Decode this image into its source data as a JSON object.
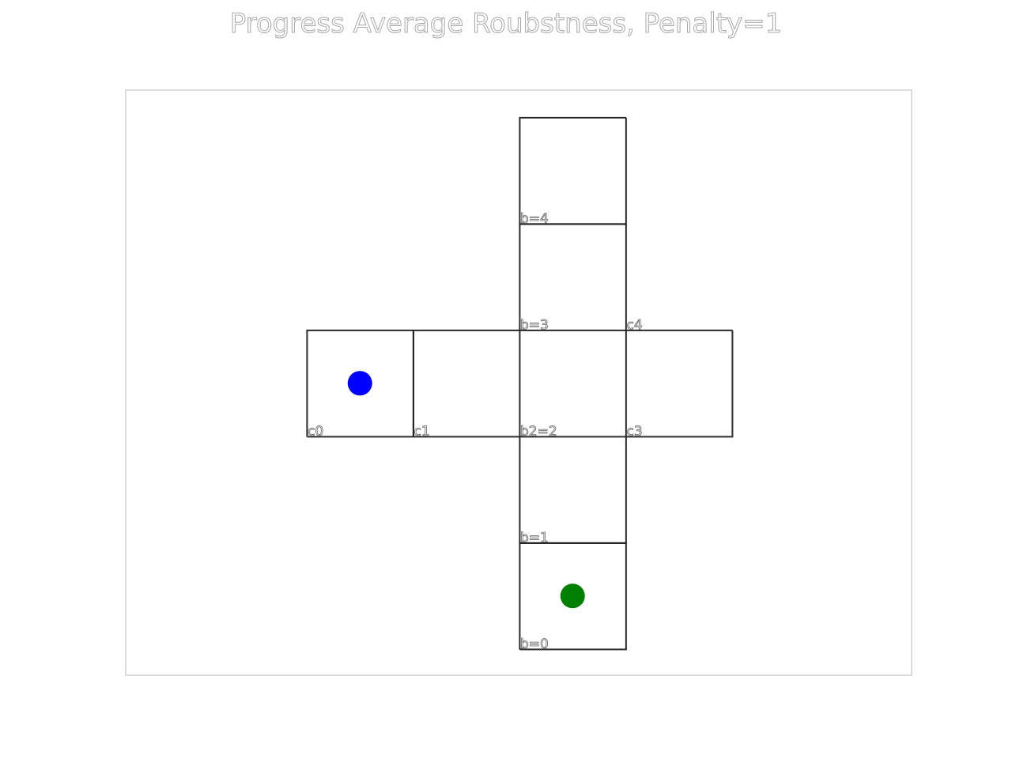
{
  "title": "Progress Average Roubstness, Penalty=1",
  "colors": {
    "start_dot": "#0000ff",
    "goal_dot": "#008000",
    "cell_outline": "#222222",
    "frame_outline": "#d0d0d0"
  },
  "grid": {
    "cells": [
      {
        "id": "b0",
        "label": "b=0",
        "col": 2,
        "row": 0
      },
      {
        "id": "b1",
        "label": "b=1",
        "col": 2,
        "row": 1
      },
      {
        "id": "b2",
        "label": "b2=2",
        "col": 2,
        "row": 2
      },
      {
        "id": "b3",
        "label": "b=3",
        "col": 2,
        "row": 3
      },
      {
        "id": "b4",
        "label": "b=4",
        "col": 2,
        "row": 4
      },
      {
        "id": "c0",
        "label": "c0",
        "col": 0,
        "row": 2
      },
      {
        "id": "c1",
        "label": "c1",
        "col": 1,
        "row": 2
      },
      {
        "id": "c3",
        "label": "c3",
        "col": 3,
        "row": 2
      },
      {
        "id": "c4",
        "label": "c4",
        "col": 3,
        "row": 3
      }
    ],
    "boxes": [
      {
        "id": "box-c0",
        "col": 0,
        "row": 2,
        "w": 1,
        "h": 1
      },
      {
        "id": "box-horizontal-arm",
        "col": 1,
        "row": 2,
        "w": 3,
        "h": 1
      },
      {
        "id": "box-vertical-arm",
        "col": 2,
        "row": 1,
        "w": 1,
        "h": 3
      },
      {
        "id": "box-b0",
        "col": 2,
        "row": 0,
        "w": 1,
        "h": 1
      },
      {
        "id": "box-b4",
        "col": 2,
        "row": 4,
        "w": 1,
        "h": 1
      }
    ],
    "markers": [
      {
        "id": "start-marker",
        "col": 0,
        "row": 2,
        "color_key": "start_dot"
      },
      {
        "id": "goal-marker",
        "col": 2,
        "row": 0,
        "color_key": "goal_dot"
      }
    ]
  }
}
